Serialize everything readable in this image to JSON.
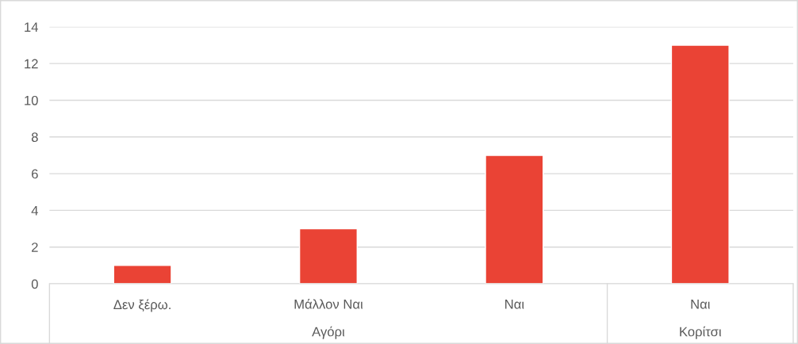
{
  "chart_data": {
    "type": "bar",
    "categories": [
      "Δεν ξέρω.",
      "Μάλλον Ναι",
      "Ναι",
      "Ναι"
    ],
    "values": [
      1,
      3,
      7,
      13
    ],
    "color": "#ea4335",
    "ylim": [
      0,
      14
    ],
    "yticks": [
      0,
      2,
      4,
      6,
      8,
      10,
      12,
      14
    ],
    "grid": "y",
    "annotations": [
      "Αγόρι",
      "Κορίτσι"
    ]
  }
}
